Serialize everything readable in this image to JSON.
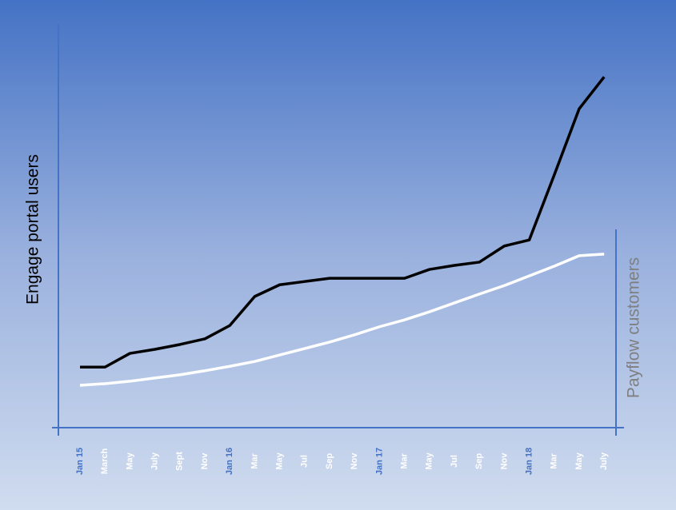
{
  "chart_data": {
    "type": "line",
    "y_label": "Engage portal users",
    "y2_label": "Payflow customers",
    "categories": [
      "Jan 15",
      "March",
      "May",
      "July",
      "Sept",
      "Nov",
      "Jan 16",
      "Mar",
      "May",
      "Jul",
      "Sep",
      "Nov",
      "Jan 17",
      "Mar",
      "May",
      "Jul",
      "Sep",
      "Nov",
      "Jan 18",
      "Mar",
      "May",
      "July"
    ],
    "x_label_colors": [
      "#4472c4",
      "#ffffff",
      "#ffffff",
      "#ffffff",
      "#ffffff",
      "#ffffff",
      "#4472c4",
      "#ffffff",
      "#ffffff",
      "#ffffff",
      "#ffffff",
      "#ffffff",
      "#4472c4",
      "#ffffff",
      "#ffffff",
      "#ffffff",
      "#ffffff",
      "#ffffff",
      "#4472c4",
      "#ffffff",
      "#ffffff",
      "#ffffff"
    ],
    "series": [
      {
        "color": "#000000",
        "values": [
          15.0,
          15.0,
          18.4,
          19.4,
          20.6,
          22.0,
          25.3,
          32.5,
          35.4,
          36.2,
          37.0,
          37.0,
          37.0,
          37.0,
          39.2,
          40.2,
          41.0,
          45.0,
          46.5,
          62.6,
          79.0,
          86.9
        ]
      },
      {
        "color": "#ffffff",
        "axis": "y2",
        "values": [
          10.5,
          10.9,
          11.5,
          12.3,
          13.1,
          14.1,
          15.2,
          16.4,
          18.0,
          19.6,
          21.2,
          23.0,
          25.0,
          26.7,
          28.7,
          30.9,
          33.1,
          35.2,
          37.6,
          40.0,
          42.6,
          43.0
        ]
      }
    ],
    "ylim": [
      0,
      100
    ],
    "y2lim": [
      0,
      100
    ],
    "axis_color": "#4472c4",
    "y_label_color": "#000000",
    "y2_label_color": "#7f7f7f"
  }
}
